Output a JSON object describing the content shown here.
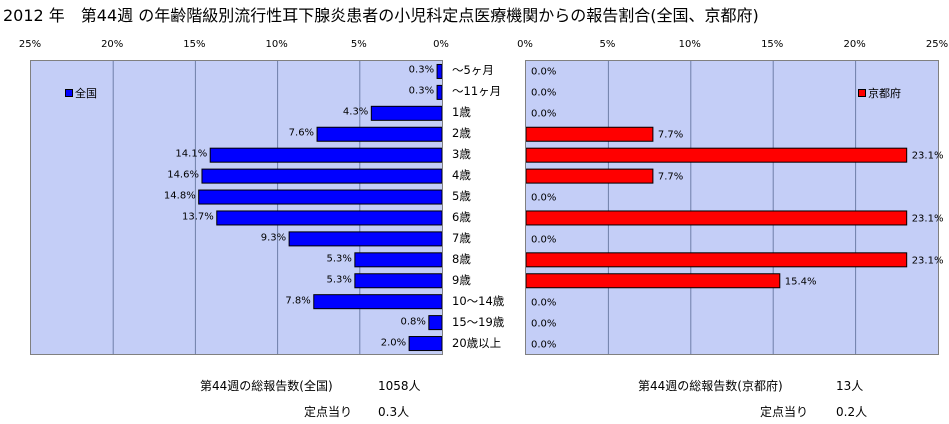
{
  "title": "2012 年　第44週 の年齢階級別流行性耳下腺炎患者の小児科定点医療機関からの報告割合(全国、京都府)",
  "chart_data": [
    {
      "type": "bar",
      "orientation": "horizontal",
      "direction": "right-to-left",
      "categories": [
        "～5ヶ月",
        "～11ヶ月",
        "1歳",
        "2歳",
        "3歳",
        "4歳",
        "5歳",
        "6歳",
        "7歳",
        "8歳",
        "9歳",
        "10～14歳",
        "15～19歳",
        "20歳以上"
      ],
      "series": [
        {
          "name": "全国",
          "color": "#0000ff",
          "values": [
            0.3,
            0.3,
            4.3,
            7.6,
            14.1,
            14.6,
            14.8,
            13.7,
            9.3,
            5.3,
            5.3,
            7.8,
            0.8,
            2.0
          ]
        }
      ],
      "value_labels": [
        "0.3%",
        "0.3%",
        "4.3%",
        "7.6%",
        "14.1%",
        "14.6%",
        "14.8%",
        "13.7%",
        "9.3%",
        "5.3%",
        "5.3%",
        "7.8%",
        "0.8%",
        "2.0%"
      ],
      "xlim": [
        0,
        25
      ],
      "ticks": [
        "25%",
        "20%",
        "15%",
        "10%",
        "5%",
        "0%"
      ],
      "legend_position": "top-left",
      "background": "#c4cef7",
      "grid": true
    },
    {
      "type": "bar",
      "orientation": "horizontal",
      "direction": "left-to-right",
      "categories": [
        "～5ヶ月",
        "～11ヶ月",
        "1歳",
        "2歳",
        "3歳",
        "4歳",
        "5歳",
        "6歳",
        "7歳",
        "8歳",
        "9歳",
        "10～14歳",
        "15～19歳",
        "20歳以上"
      ],
      "series": [
        {
          "name": "京都府",
          "color": "#ff0000",
          "values": [
            0.0,
            0.0,
            0.0,
            7.7,
            23.1,
            7.7,
            0.0,
            23.1,
            0.0,
            23.1,
            15.4,
            0.0,
            0.0,
            0.0
          ]
        }
      ],
      "value_labels": [
        "0.0%",
        "0.0%",
        "0.0%",
        "7.7%",
        "23.1%",
        "7.7%",
        "0.0%",
        "23.1%",
        "0.0%",
        "23.1%",
        "15.4%",
        "0.0%",
        "0.0%",
        "0.0%"
      ],
      "xlim": [
        0,
        25
      ],
      "ticks": [
        "0%",
        "5%",
        "10%",
        "15%",
        "20%",
        "25%"
      ],
      "legend_position": "top-right",
      "background": "#c4cef7",
      "grid": true
    }
  ],
  "footer": {
    "national_total_label": "第44週の総報告数(全国)",
    "national_total_value": "1058人",
    "national_per_site_label": "定点当り",
    "national_per_site_value": "0.3人",
    "kyoto_total_label": "第44週の総報告数(京都府)",
    "kyoto_total_value": "13人",
    "kyoto_per_site_label": "定点当り",
    "kyoto_per_site_value": "0.2人"
  }
}
